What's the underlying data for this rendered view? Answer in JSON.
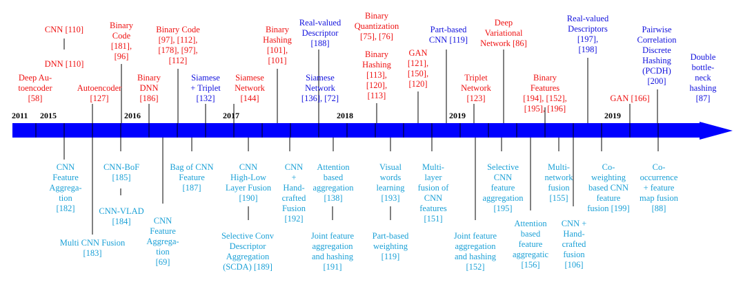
{
  "colors": {
    "red": "#ee1111",
    "blue": "#1111dd",
    "cyan": "#1aa0d6",
    "arrow": "#0000ff",
    "line": "#000000"
  },
  "years": [
    "2011",
    "2015",
    "2016",
    "2017",
    "2018",
    "2019",
    "2019"
  ],
  "top_items": [
    {
      "lines": [
        "CNN [110]"
      ],
      "color": "red"
    },
    {
      "lines": [
        "DNN [110]"
      ],
      "color": "red"
    },
    {
      "lines": [
        "Deep Au-",
        "toencoder",
        "[58]"
      ],
      "color": "red"
    },
    {
      "lines": [
        "Binary",
        "Code",
        "[181],",
        "[96]"
      ],
      "color": "red"
    },
    {
      "lines": [
        "Autoencoder",
        "[127]"
      ],
      "color": "red"
    },
    {
      "lines": [
        "Binary",
        "DNN",
        "[186]"
      ],
      "color": "red"
    },
    {
      "lines": [
        "Binary Code",
        "[97], [112],",
        "[178], [97],",
        "[112]"
      ],
      "color": "red"
    },
    {
      "lines": [
        "Siamese",
        "+ Triplet",
        "[132]"
      ],
      "color": "blue"
    },
    {
      "lines": [
        "Siamese",
        "Network",
        "[144]"
      ],
      "color": "red"
    },
    {
      "lines": [
        "Binary",
        "Hashing",
        "[101],",
        "[101]"
      ],
      "color": "red"
    },
    {
      "lines": [
        "Real-valued",
        "Descriptor",
        "[188]"
      ],
      "color": "blue"
    },
    {
      "lines": [
        "Siamese",
        "Network",
        "[136], [72]"
      ],
      "color": "blue"
    },
    {
      "lines": [
        "Binary",
        "Quantization",
        "[75], [76]"
      ],
      "color": "red"
    },
    {
      "lines": [
        "Binary",
        "Hashing",
        "[113],",
        "[120],",
        "[113]"
      ],
      "color": "red"
    },
    {
      "lines": [
        "GAN",
        "[121],",
        "[150],",
        "[120]"
      ],
      "color": "red"
    },
    {
      "lines": [
        "Part-based",
        "CNN [119]"
      ],
      "color": "blue"
    },
    {
      "lines": [
        "Triplet",
        "Network",
        "[123]"
      ],
      "color": "red"
    },
    {
      "lines": [
        "Deep",
        "Variational",
        "Network [86]"
      ],
      "color": "red"
    },
    {
      "lines": [
        "Binary",
        "Features",
        "[194], [152],",
        "[195], [196]"
      ],
      "color": "red"
    },
    {
      "lines": [
        "Real-valued",
        "Descriptors",
        "[197],",
        "[198]"
      ],
      "color": "blue"
    },
    {
      "lines": [
        "GAN [166]"
      ],
      "color": "red"
    },
    {
      "lines": [
        "Pairwise",
        "Correlation",
        "Discrete",
        "Hashing",
        "(PCDH)",
        "[200]"
      ],
      "color": "blue"
    },
    {
      "lines": [
        "Double",
        "bottle-",
        "neck",
        "hashing",
        "[87]"
      ],
      "color": "blue"
    }
  ],
  "bottom_items": [
    {
      "lines": [
        "CNN",
        "Feature",
        "Aggrega-",
        "tion",
        "[182]"
      ]
    },
    {
      "lines": [
        "Multi CNN Fusion",
        "[183]"
      ]
    },
    {
      "lines": [
        "CNN-BoF",
        "[185]"
      ]
    },
    {
      "lines": [
        "CNN-VLAD",
        "[184]"
      ]
    },
    {
      "lines": [
        "CNN",
        "Feature",
        "Aggrega-",
        "tion",
        "[69]"
      ]
    },
    {
      "lines": [
        "Bag of CNN",
        "Feature",
        "[187]"
      ]
    },
    {
      "lines": [
        "CNN",
        "High-Low",
        "Layer Fusion",
        "[190]"
      ]
    },
    {
      "lines": [
        "Selective Conv",
        "Descriptor",
        "Aggregation",
        "(SCDA) [189]"
      ]
    },
    {
      "lines": [
        "CNN",
        "+",
        "Hand-",
        "crafted",
        "Fusion",
        "[192]"
      ]
    },
    {
      "lines": [
        "Attention",
        "based",
        "aggregation",
        "[138]"
      ]
    },
    {
      "lines": [
        "Joint feature",
        "aggregation",
        "and hashing",
        "[191]"
      ]
    },
    {
      "lines": [
        "Visual",
        "words",
        "learning",
        "[193]"
      ]
    },
    {
      "lines": [
        "Part-based",
        "weighting",
        "[119]"
      ]
    },
    {
      "lines": [
        "Multi-",
        "layer",
        "fusion of",
        "CNN",
        "features",
        "[151]"
      ]
    },
    {
      "lines": [
        "Joint feature",
        "aggregation",
        "and hashing",
        "[152]"
      ]
    },
    {
      "lines": [
        "Selective",
        "CNN",
        "feature",
        "aggregation",
        "[195]"
      ]
    },
    {
      "lines": [
        "Attention",
        "based",
        "feature",
        "aggregatic",
        "[156]"
      ]
    },
    {
      "lines": [
        "Multi-",
        "network",
        "fusion",
        "[155]"
      ]
    },
    {
      "lines": [
        "CNN +",
        "Hand-",
        "crafted",
        "fusion",
        "[106]"
      ]
    },
    {
      "lines": [
        "Co-",
        "weighting",
        "based CNN",
        "feature",
        "fusion [199]"
      ]
    },
    {
      "lines": [
        "Co-",
        "occurrence",
        "+ feature",
        "map fusion",
        "[88]"
      ]
    }
  ]
}
